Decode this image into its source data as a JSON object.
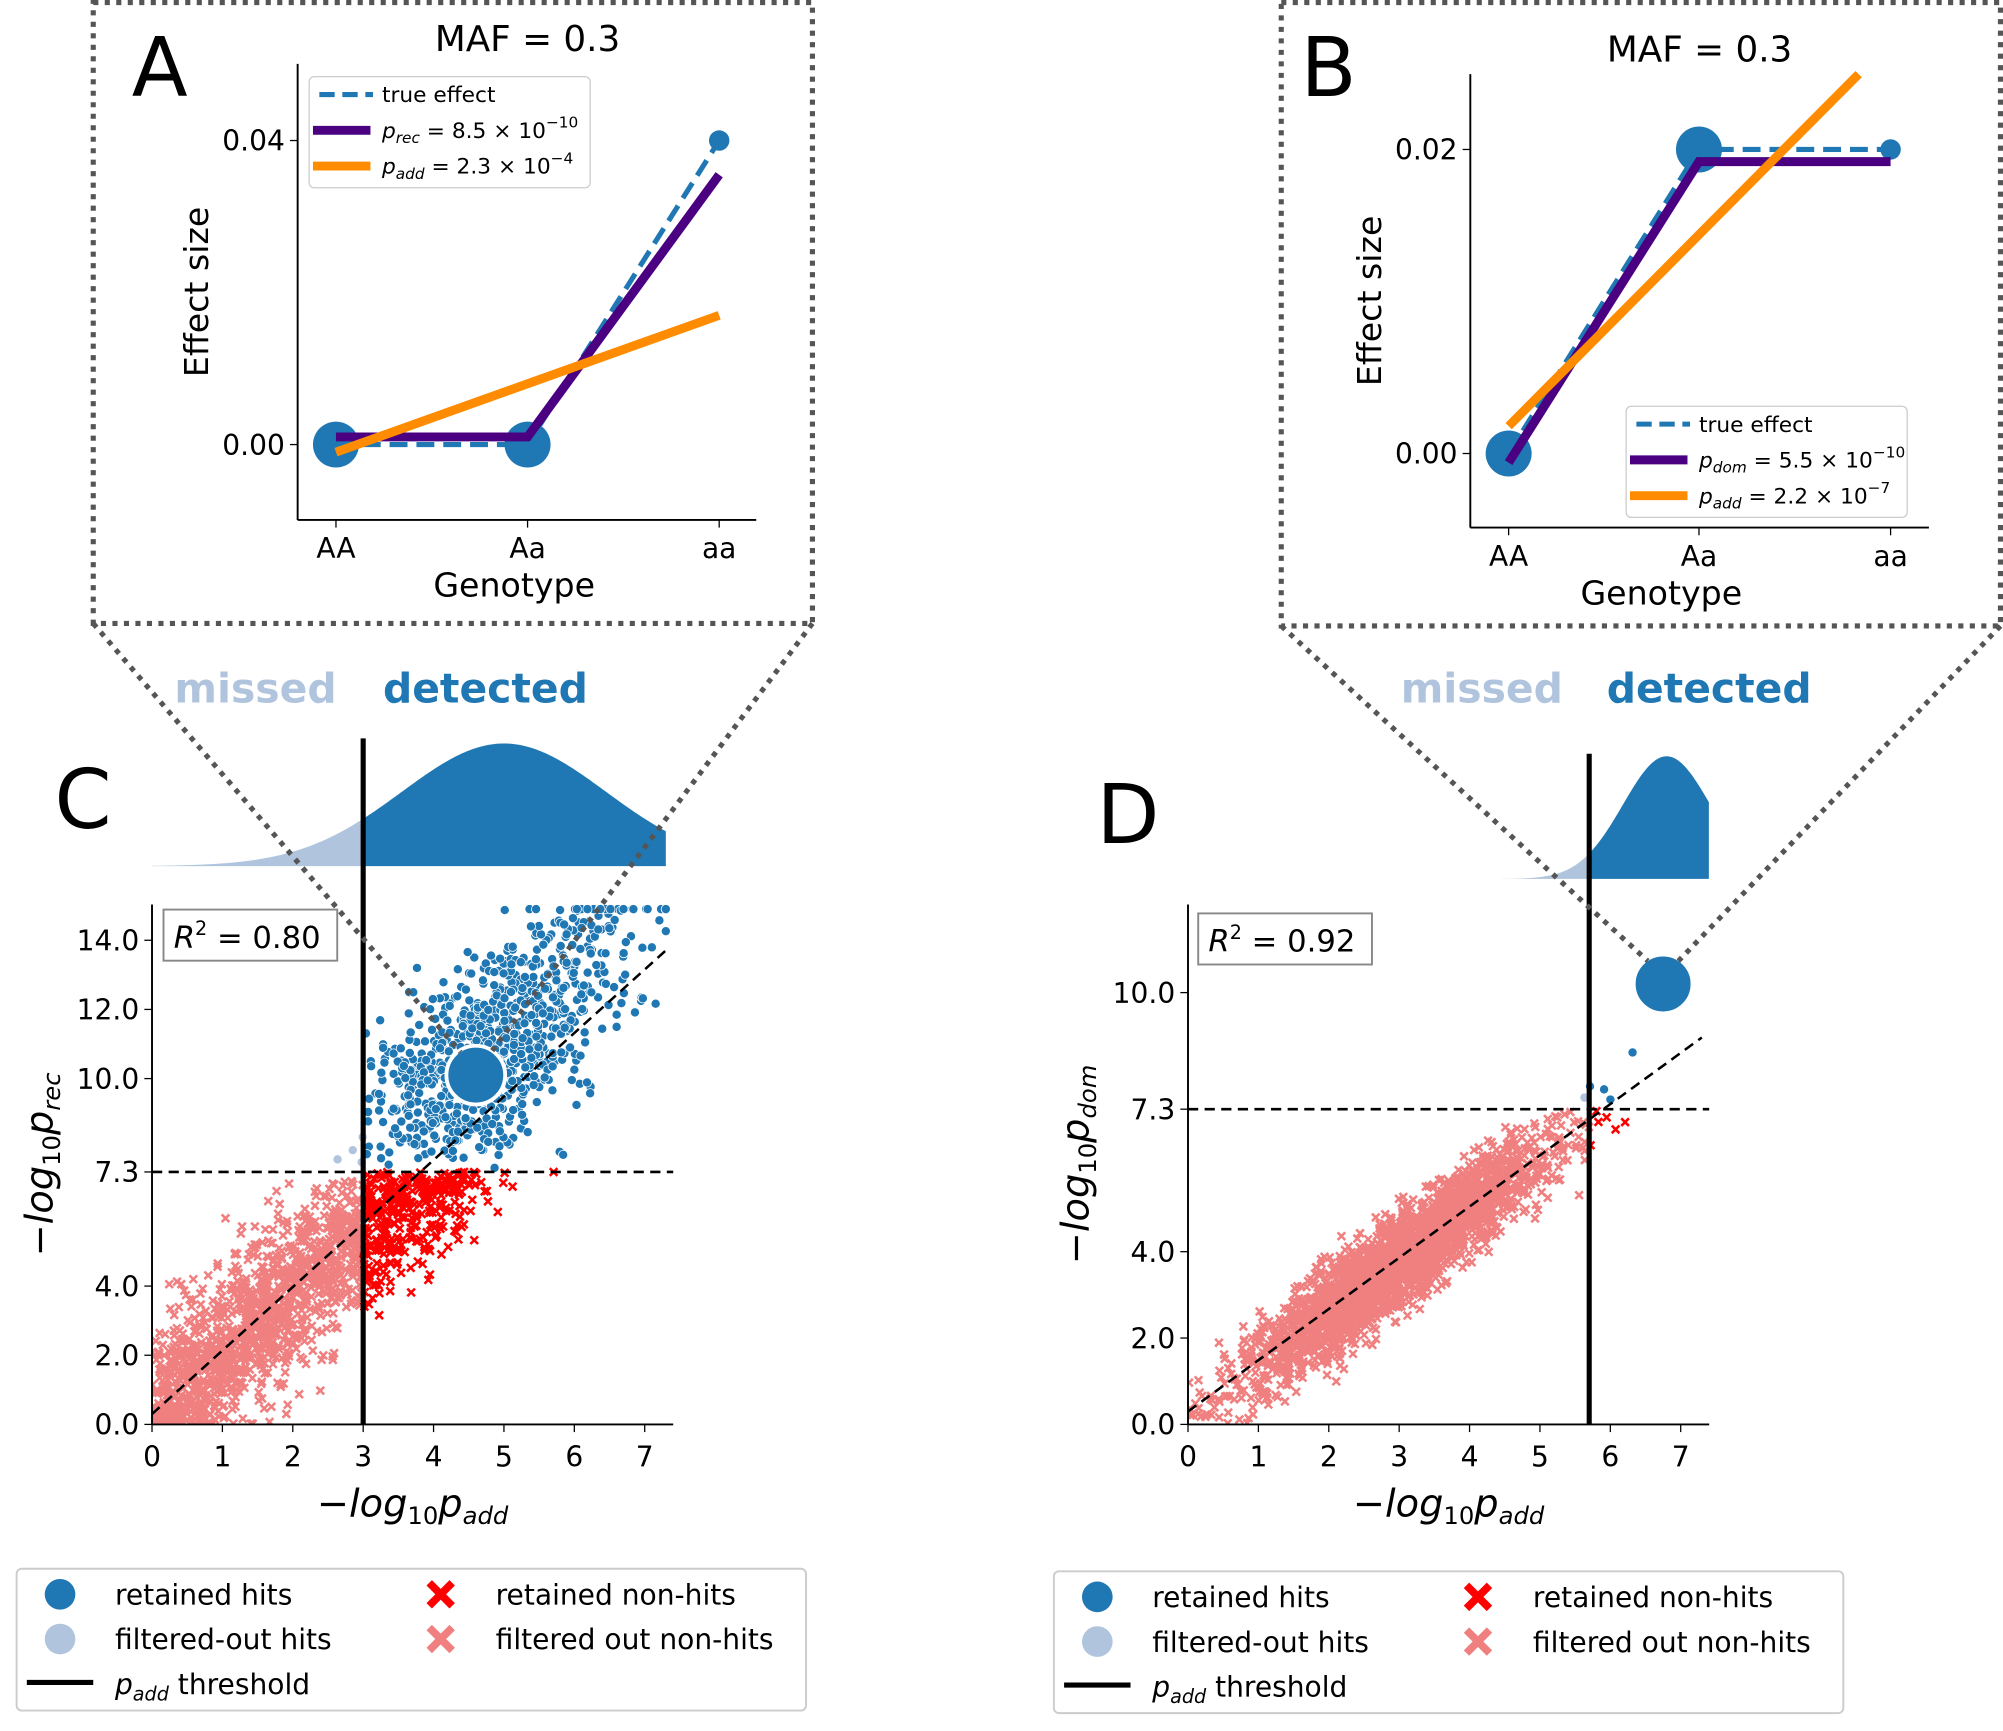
{
  "colors": {
    "hit": "#1f77b4",
    "filtered_hit": "#b0c4de",
    "nonhit": "#ff0000",
    "filtered_nonhit": "#f08080",
    "rec": "#4b0082",
    "add": "#ff8c00",
    "threshold": "#000000"
  },
  "chart_data": [
    {
      "panel": "A",
      "type": "line",
      "title": "MAF = 0.3",
      "xlabel": "Genotype",
      "ylabel": "Effect size",
      "categories": [
        "AA",
        "Aa",
        "aa"
      ],
      "yticks": [
        "0.00",
        "0.04"
      ],
      "series": [
        {
          "name": "true effect",
          "style": "dashed",
          "values": [
            0,
            0,
            0.04
          ]
        },
        {
          "name": "p_rec = 8.5 × 10^-10",
          "values": [
            0.001,
            0.001,
            0.0355
          ]
        },
        {
          "name": "p_add = 2.3 × 10^-4",
          "values": [
            -0.001,
            0.008,
            0.017
          ]
        }
      ],
      "legend": {
        "true": "true effect",
        "rec_p": "p",
        "rec_sub": "rec",
        "rec_val": " = 8.5 × 10",
        "rec_exp": "−10",
        "add_p": "p",
        "add_sub": "add",
        "add_val": " = 2.3 × 10",
        "add_exp": "−4"
      },
      "legend_position": "upper-left"
    },
    {
      "panel": "B",
      "type": "line",
      "title": "MAF = 0.3",
      "xlabel": "Genotype",
      "ylabel": "Effect size",
      "categories": [
        "AA",
        "Aa",
        "aa"
      ],
      "yticks": [
        "0.00",
        "0.02"
      ],
      "series": [
        {
          "name": "true effect",
          "style": "dashed",
          "values": [
            0,
            0.02,
            0.02
          ]
        },
        {
          "name": "p_dom = 5.5 × 10^-10",
          "values": [
            -0.0006,
            0.0192,
            0.0192
          ]
        },
        {
          "name": "p_add = 2.2 × 10^-7",
          "values": [
            0.0018,
            0.0115,
            0.0248
          ]
        }
      ],
      "legend": {
        "true": "true effect",
        "rec_p": "p",
        "rec_sub": "dom",
        "rec_val": " = 5.5 × 10",
        "rec_exp": "−10",
        "add_p": "p",
        "add_sub": "add",
        "add_val": " = 2.2 × 10",
        "add_exp": "−7"
      },
      "legend_position": "lower-right"
    },
    {
      "panel": "C",
      "type": "scatter",
      "xlabel": {
        "pre": "−log",
        "sub": "10",
        "p": "p",
        "psub": "add"
      },
      "ylabel": {
        "pre": "−log",
        "sub": "10",
        "p": "p",
        "psub": "rec"
      },
      "xticks": [
        "0",
        "1",
        "2",
        "3",
        "4",
        "5",
        "6",
        "7"
      ],
      "yticks": [
        "0.0",
        "2.0",
        "4.0",
        "7.3",
        "10.0",
        "12.0",
        "14.0"
      ],
      "xlim": [
        0,
        7.4
      ],
      "ylim": [
        0,
        15
      ],
      "threshold_x": 3,
      "threshold_y": 7.3,
      "r2": "R",
      "r2_val": " = 0.80",
      "highlight": [
        4.6,
        10.1
      ],
      "slope": 1.85,
      "hist_labels": {
        "missed": "missed",
        "detected": "detected"
      }
    },
    {
      "panel": "D",
      "type": "scatter",
      "xlabel": {
        "pre": "−log",
        "sub": "10",
        "p": "p",
        "psub": "add"
      },
      "ylabel": {
        "pre": "−log",
        "sub": "10",
        "p": "p",
        "psub": "dom"
      },
      "xticks": [
        "0",
        "1",
        "2",
        "3",
        "4",
        "5",
        "6",
        "7"
      ],
      "yticks": [
        "0.0",
        "2.0",
        "4.0",
        "7.3",
        "10.0"
      ],
      "xlim": [
        0,
        7.4
      ],
      "ylim": [
        0,
        12
      ],
      "threshold_x": 5.7,
      "threshold_y": 7.3,
      "r2": "R",
      "r2_val": " = 0.92",
      "highlight": [
        6.75,
        10.2
      ],
      "slope": 1.2,
      "hist_labels": {
        "missed": "missed",
        "detected": "detected"
      }
    }
  ],
  "panel_letters": [
    "A",
    "B",
    "C",
    "D"
  ],
  "legend": {
    "retained_hits": "retained hits",
    "filtered_hits": "filtered-out hits",
    "threshold_p": "p",
    "threshold_sub": "add",
    "threshold_rest": " threshold",
    "retained_nonhits": "retained non-hits",
    "filtered_nonhits": "filtered out non-hits"
  }
}
